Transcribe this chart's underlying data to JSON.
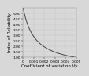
{
  "xlabel": "Coefficient of variation Vy",
  "ylabel": "Index of Reliability",
  "xlim": [
    0,
    0.005
  ],
  "ylim": [
    1.0,
    5.5
  ],
  "xticks": [
    0,
    0.001,
    0.002,
    0.003,
    0.004,
    0.005
  ],
  "xtick_labels": [
    "0",
    "0.001",
    "0.002",
    "0.003",
    "0.004",
    "0.005"
  ],
  "yticks": [
    1.0,
    1.5,
    2.0,
    2.5,
    3.0,
    3.5,
    4.0,
    4.5,
    5.0
  ],
  "ytick_labels": [
    "1.00",
    "1.50",
    "2.00",
    "2.50",
    "3.00",
    "3.50",
    "4.00",
    "4.50",
    "5.00"
  ],
  "line_color": "#444444",
  "line_width": 0.7,
  "grid_color": "#c0c0c0",
  "background_color": "#d8d8d8",
  "xlabel_fontsize": 4.0,
  "ylabel_fontsize": 4.0,
  "tick_fontsize": 3.2,
  "curve_a": 0.005,
  "curve_b": 0.001
}
